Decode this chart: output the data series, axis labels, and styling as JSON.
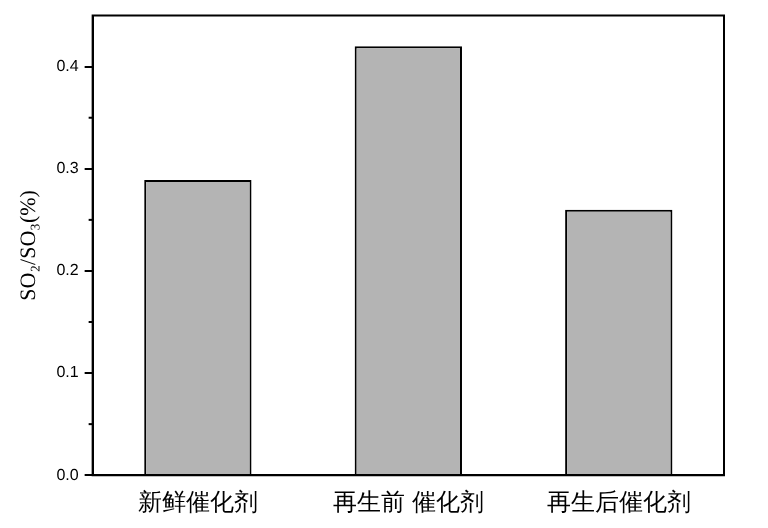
{
  "chart_data": {
    "type": "bar",
    "ylabel": "SO₂/SO₃(%)",
    "categories": [
      "新鲜催化剂",
      "再生前 催化剂",
      "再生后催化剂"
    ],
    "values": [
      0.289,
      0.42,
      0.26
    ],
    "color": "#b4b4b4",
    "ylim": [
      0,
      0.45
    ],
    "yticks": [
      {
        "value": 0,
        "label": "0.0"
      },
      {
        "value": 0.1,
        "label": "0.1"
      },
      {
        "value": 0.2,
        "label": "0.2"
      },
      {
        "value": 0.3,
        "label": "0.3"
      },
      {
        "value": 0.4,
        "label": "0.4"
      }
    ],
    "grid": false,
    "legend": false
  }
}
